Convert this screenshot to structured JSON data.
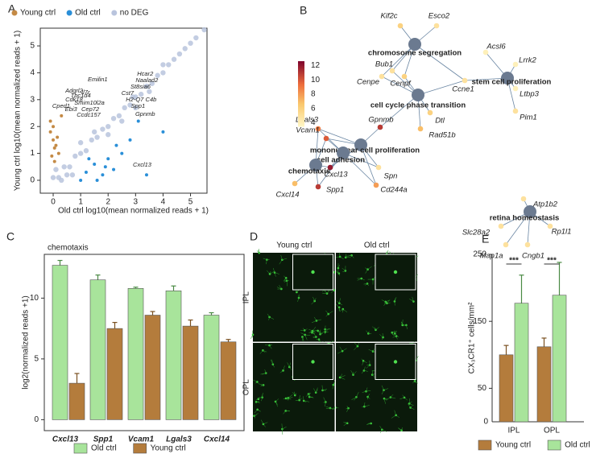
{
  "chart_data": [
    {
      "panel": "A",
      "type": "scatter",
      "xlabel": "Old ctrl log10(mean normalized reads + 1)",
      "ylabel": "Young ctrl log10(mean normalized reads + 1)",
      "xlim": [
        -0.47,
        5.6
      ],
      "ylim": [
        -0.48,
        5.66
      ],
      "xticks": [
        0,
        1,
        2,
        3,
        4,
        5
      ],
      "yticks": [
        0,
        1,
        2,
        3,
        4,
        5
      ],
      "series": [
        {
          "name": "no DEG",
          "color": "#b9c4dd",
          "x": [
            0.0,
            0.2,
            0.4,
            0.6,
            0.8,
            1.0,
            1.2,
            1.4,
            1.6,
            1.8,
            2.0,
            2.2,
            2.4,
            2.6,
            2.8,
            3.0,
            3.2,
            3.4,
            3.6,
            3.8,
            4.0,
            4.2,
            4.4,
            4.6,
            4.8,
            5.0,
            5.2,
            5.5,
            1.5,
            2.5,
            3.5,
            1.0,
            0.5,
            3.0,
            4.0,
            0.1,
            0.3,
            0.7,
            2.0,
            2.9
          ],
          "y": [
            0.1,
            0.1,
            0.5,
            0.5,
            0.9,
            1.0,
            1.1,
            1.5,
            1.6,
            1.9,
            2.0,
            2.3,
            2.4,
            2.7,
            2.8,
            3.1,
            3.2,
            3.5,
            3.6,
            3.9,
            4.0,
            4.3,
            4.5,
            4.7,
            4.9,
            5.1,
            5.3,
            5.6,
            1.8,
            2.2,
            3.3,
            1.4,
            0.2,
            2.7,
            4.3,
            0.4,
            0.0,
            0.2,
            1.7,
            3.1
          ]
        },
        {
          "name": "Young ctrl",
          "color": "#c48a45",
          "x": [
            -0.1,
            0.0,
            0.05,
            -0.05,
            0.1,
            0.0,
            0.15,
            0.3,
            0.2,
            -0.1,
            0.05
          ],
          "y": [
            1.8,
            1.5,
            1.2,
            0.9,
            1.3,
            2.0,
            1.6,
            2.4,
            1.0,
            2.2,
            0.7
          ]
        },
        {
          "name": "Old ctrl",
          "color": "#2a8fd8",
          "x": [
            1.2,
            1.5,
            1.8,
            2.0,
            2.2,
            1.0,
            2.5,
            1.6,
            1.9,
            2.8,
            3.4,
            4.0,
            2.3,
            1.3,
            3.1
          ],
          "y": [
            0.3,
            0.6,
            0.2,
            0.8,
            0.4,
            0.0,
            1.0,
            0.0,
            0.5,
            1.5,
            0.2,
            1.8,
            1.3,
            0.8,
            2.2
          ]
        }
      ],
      "legend_order": [
        1,
        2,
        0
      ],
      "annotations": [
        {
          "text": "Emilin1",
          "x": 1.62,
          "y": 3.74
        },
        {
          "text": "Hcar2",
          "x": 3.35,
          "y": 3.95
        },
        {
          "text": "Adgrl2",
          "x": 0.76,
          "y": 3.32
        },
        {
          "text": "Il7r",
          "x": 1.18,
          "y": 3.26
        },
        {
          "text": "Naalad2",
          "x": 3.41,
          "y": 3.71
        },
        {
          "text": "Tbc1d4",
          "x": 1.0,
          "y": 3.14
        },
        {
          "text": "St8sia6",
          "x": 3.18,
          "y": 3.47
        },
        {
          "text": "Cdk18",
          "x": 0.76,
          "y": 2.99
        },
        {
          "text": "Cst7",
          "x": 2.71,
          "y": 3.23
        },
        {
          "text": "Smim10l2a",
          "x": 1.32,
          "y": 2.87
        },
        {
          "text": "H2-Q7",
          "x": 2.97,
          "y": 2.99
        },
        {
          "text": "C4b",
          "x": 3.56,
          "y": 2.99
        },
        {
          "text": "Cped1",
          "x": 0.29,
          "y": 2.75
        },
        {
          "text": "Ebi3",
          "x": 0.65,
          "y": 2.63
        },
        {
          "text": "Cep72",
          "x": 1.35,
          "y": 2.63
        },
        {
          "text": "Spp1",
          "x": 3.09,
          "y": 2.75
        },
        {
          "text": "Ccdc157",
          "x": 1.29,
          "y": 2.43
        },
        {
          "text": "Gpnmb",
          "x": 3.35,
          "y": 2.46
        },
        {
          "text": "Cxcl13",
          "x": 3.24,
          "y": 0.57
        }
      ]
    },
    {
      "panel": "B",
      "type": "network",
      "clim": [
        3.5,
        12.6
      ],
      "cticks": [
        4,
        6,
        8,
        10,
        12
      ],
      "term_color": "#6b7a90",
      "nodes": [
        {
          "label": "chromosome segregation"
        },
        {
          "label": "stem cell proliferation"
        },
        {
          "label": "cell cycle phase transition"
        },
        {
          "label": "mononuclear cell proliferation"
        },
        {
          "label": "cell adhesion"
        },
        {
          "label": "chemotaxis"
        },
        {
          "label": "retina homeostasis"
        },
        {
          "label": "Kif2c",
          "value": 6
        },
        {
          "label": "Esco2",
          "value": 5
        },
        {
          "label": "Bub1",
          "value": 5
        },
        {
          "label": "Cenpe",
          "value": 5
        },
        {
          "label": "Cenpf",
          "value": 6
        },
        {
          "label": "Ccne1",
          "value": 5
        },
        {
          "label": "Acsl6",
          "value": 4
        },
        {
          "label": "Lrrk2",
          "value": 4
        },
        {
          "label": "Ltbp3",
          "value": 4
        },
        {
          "label": "Pim1",
          "value": 5
        },
        {
          "label": "Dtl",
          "value": 6
        },
        {
          "label": "Rad51b",
          "value": 7
        },
        {
          "label": "Gpnmb",
          "value": 11
        },
        {
          "label": "Lgals3",
          "value": 9
        },
        {
          "label": "Vcam1",
          "value": 10
        },
        {
          "label": "Cxcl13",
          "value": 12
        },
        {
          "label": "Spn",
          "value": 5
        },
        {
          "label": "Spp1",
          "value": 11
        },
        {
          "label": "Cd244a",
          "value": 8
        },
        {
          "label": "Cxcl14",
          "value": 7
        },
        {
          "label": "Atp1b2",
          "value": 5
        },
        {
          "label": "Rp1l1",
          "value": 5
        },
        {
          "label": "Slc28a2",
          "value": 5
        },
        {
          "label": "Cngb1",
          "value": 5
        },
        {
          "label": "Map1a",
          "value": 5
        }
      ],
      "edges": [
        [
          0,
          7
        ],
        [
          0,
          8
        ],
        [
          0,
          9
        ],
        [
          0,
          10
        ],
        [
          0,
          11
        ],
        [
          0,
          12
        ],
        [
          2,
          9
        ],
        [
          2,
          10
        ],
        [
          2,
          11
        ],
        [
          2,
          12
        ],
        [
          2,
          17
        ],
        [
          2,
          18
        ],
        [
          2,
          19
        ],
        [
          1,
          12
        ],
        [
          1,
          13
        ],
        [
          1,
          14
        ],
        [
          1,
          15
        ],
        [
          1,
          16
        ],
        [
          3,
          19
        ],
        [
          3,
          20
        ],
        [
          3,
          21
        ],
        [
          3,
          22
        ],
        [
          3,
          23
        ],
        [
          3,
          25
        ],
        [
          4,
          20
        ],
        [
          4,
          21
        ],
        [
          4,
          22
        ],
        [
          4,
          23
        ],
        [
          4,
          24
        ],
        [
          4,
          25
        ],
        [
          5,
          20
        ],
        [
          5,
          21
        ],
        [
          5,
          22
        ],
        [
          5,
          24
        ],
        [
          5,
          26
        ],
        [
          6,
          27
        ],
        [
          6,
          28
        ],
        [
          6,
          29
        ],
        [
          6,
          30
        ],
        [
          6,
          31
        ]
      ]
    },
    {
      "panel": "C",
      "type": "bar",
      "title": "chemotaxis",
      "ylabel": "log2(normalized reads +1)",
      "categories": [
        "Cxcl13",
        "Spp1",
        "Vcam1",
        "Lgals3",
        "Cxcl14"
      ],
      "ylim": [
        -0.9,
        13.6
      ],
      "yticks": [
        0,
        5,
        10
      ],
      "series": [
        {
          "name": "Old ctrl",
          "color": "#a8e49b",
          "values": [
            12.7,
            11.5,
            10.8,
            10.6,
            8.6
          ],
          "errors": [
            0.4,
            0.4,
            0.1,
            0.4,
            0.2
          ]
        },
        {
          "name": "Young ctrl",
          "color": "#b47c3c",
          "values": [
            3.0,
            7.5,
            8.6,
            7.7,
            6.4
          ],
          "errors": [
            0.8,
            0.5,
            0.3,
            0.5,
            0.2
          ]
        }
      ]
    },
    {
      "panel": "D",
      "type": "image",
      "columns": [
        "Young ctrl",
        "Old ctrl"
      ],
      "rows": [
        "IPL",
        "OPL"
      ]
    },
    {
      "panel": "E",
      "type": "bar",
      "ylabel": "CX₃CR1⁺ cells/mm²",
      "categories": [
        "IPL",
        "OPL"
      ],
      "ylim": [
        0,
        250
      ],
      "yticks": [
        50,
        150,
        250
      ],
      "axis_label_zero": 0,
      "series": [
        {
          "name": "Young ctrl",
          "color": "#b47c3c",
          "values": [
            100,
            112
          ],
          "errors": [
            14,
            13
          ]
        },
        {
          "name": "Old ctrl",
          "color": "#a8e49b",
          "values": [
            177,
            189
          ],
          "errors": [
            42,
            49
          ]
        }
      ],
      "significance": [
        {
          "label": "***",
          "category": 0
        },
        {
          "label": "***",
          "category": 1
        }
      ]
    }
  ]
}
